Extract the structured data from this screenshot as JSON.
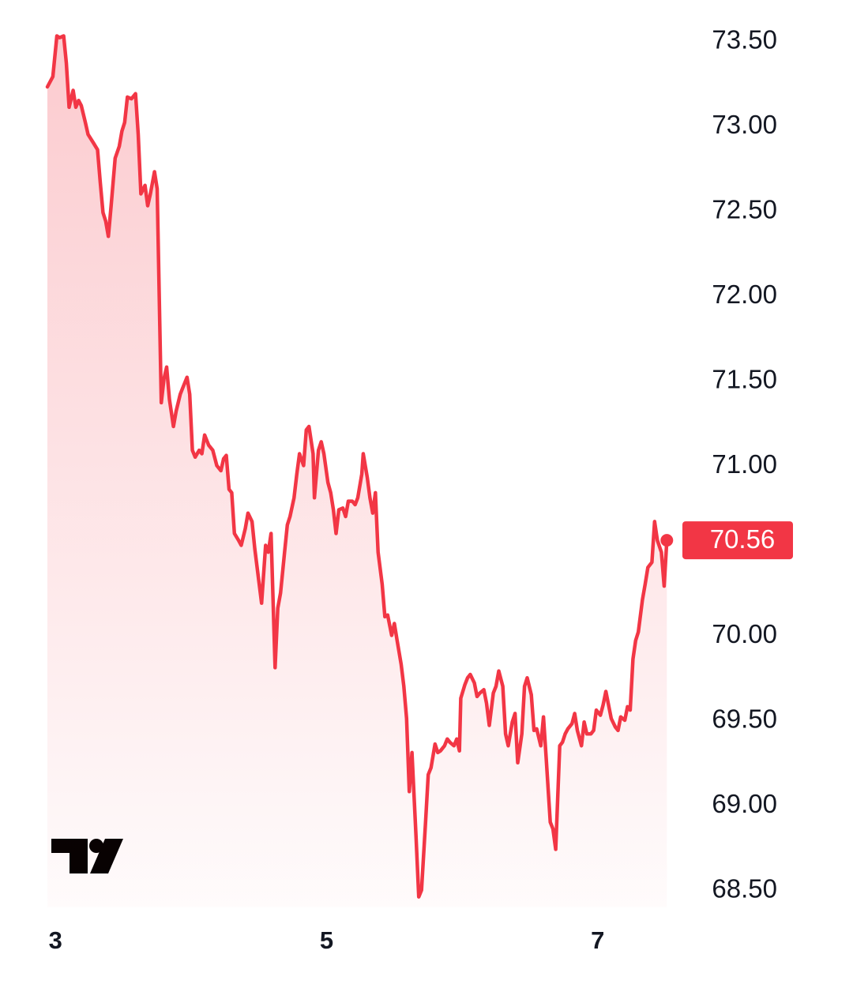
{
  "chart_data": {
    "type": "line",
    "color": "#f23645",
    "xlim": [
      2.94,
      7.52
    ],
    "xticks": [
      3,
      5,
      7
    ],
    "ylim": [
      68.4,
      73.6
    ],
    "yticks": [
      {
        "value": 73.5,
        "label": "73.50"
      },
      {
        "value": 73.0,
        "label": "73.00"
      },
      {
        "value": 72.5,
        "label": "72.50"
      },
      {
        "value": 72.0,
        "label": "72.00"
      },
      {
        "value": 71.5,
        "label": "71.50"
      },
      {
        "value": 71.0,
        "label": "71.00"
      },
      {
        "value": 70.0,
        "label": "70.00"
      },
      {
        "value": 69.5,
        "label": "69.50"
      },
      {
        "value": 69.0,
        "label": "69.00"
      },
      {
        "value": 68.5,
        "label": "68.50"
      }
    ],
    "last_price": {
      "value": 70.56,
      "label": "70.56"
    },
    "x": [
      2.94,
      2.98,
      3.01,
      3.03,
      3.06,
      3.08,
      3.1,
      3.13,
      3.15,
      3.17,
      3.19,
      3.22,
      3.24,
      3.28,
      3.31,
      3.33,
      3.35,
      3.37,
      3.39,
      3.41,
      3.44,
      3.47,
      3.49,
      3.51,
      3.53,
      3.56,
      3.59,
      3.61,
      3.63,
      3.66,
      3.68,
      3.7,
      3.73,
      3.75,
      3.78,
      3.8,
      3.82,
      3.84,
      3.87,
      3.89,
      3.92,
      3.94,
      3.97,
      3.99,
      4.01,
      4.03,
      4.06,
      4.08,
      4.1,
      4.13,
      4.16,
      4.19,
      4.22,
      4.24,
      4.26,
      4.28,
      4.3,
      4.32,
      4.35,
      4.37,
      4.4,
      4.42,
      4.45,
      4.47,
      4.5,
      4.52,
      4.55,
      4.57,
      4.59,
      4.62,
      4.64,
      4.66,
      4.69,
      4.71,
      4.73,
      4.76,
      4.78,
      4.8,
      4.83,
      4.85,
      4.87,
      4.9,
      4.91,
      4.94,
      4.96,
      4.98,
      5.01,
      5.03,
      5.05,
      5.07,
      5.09,
      5.12,
      5.14,
      5.16,
      5.19,
      5.21,
      5.23,
      5.26,
      5.27,
      5.3,
      5.32,
      5.34,
      5.36,
      5.38,
      5.41,
      5.43,
      5.45,
      5.48,
      5.5,
      5.52,
      5.55,
      5.57,
      5.59,
      5.61,
      5.63,
      5.66,
      5.68,
      5.7,
      5.73,
      5.75,
      5.77,
      5.8,
      5.82,
      5.84,
      5.87,
      5.89,
      5.91,
      5.94,
      5.96,
      5.98,
      5.99,
      6.02,
      6.04,
      6.06,
      6.09,
      6.11,
      6.13,
      6.16,
      6.18,
      6.2,
      6.23,
      6.25,
      6.27,
      6.3,
      6.32,
      6.34,
      6.37,
      6.39,
      6.41,
      6.44,
      6.46,
      6.48,
      6.51,
      6.53,
      6.55,
      6.58,
      6.6,
      6.62,
      6.65,
      6.67,
      6.69,
      6.72,
      6.74,
      6.76,
      6.78,
      6.81,
      6.83,
      6.85,
      6.88,
      6.9,
      6.92,
      6.95,
      6.97,
      6.99,
      7.02,
      7.04,
      7.06,
      7.08,
      7.1,
      7.13,
      7.15,
      7.17,
      7.2,
      7.22,
      7.24,
      7.26,
      7.28,
      7.3,
      7.33,
      7.35,
      7.37,
      7.4,
      7.42,
      7.44,
      7.47,
      7.49,
      7.51
    ],
    "values": [
      73.23,
      73.29,
      73.53,
      73.52,
      73.53,
      73.37,
      73.11,
      73.21,
      73.11,
      73.15,
      73.12,
      73.02,
      72.95,
      72.9,
      72.86,
      72.67,
      72.49,
      72.44,
      72.35,
      72.53,
      72.81,
      72.88,
      72.97,
      73.02,
      73.17,
      73.16,
      73.19,
      72.95,
      72.6,
      72.65,
      72.53,
      72.6,
      72.73,
      72.63,
      71.37,
      71.51,
      71.58,
      71.39,
      71.23,
      71.32,
      71.42,
      71.46,
      71.52,
      71.42,
      71.09,
      71.05,
      71.09,
      71.07,
      71.18,
      71.12,
      71.09,
      71.0,
      70.97,
      71.04,
      71.06,
      70.86,
      70.84,
      70.6,
      70.56,
      70.53,
      70.63,
      70.72,
      70.67,
      70.51,
      70.32,
      70.19,
      70.53,
      70.49,
      70.6,
      69.81,
      70.16,
      70.25,
      70.49,
      70.65,
      70.7,
      70.81,
      70.95,
      71.07,
      71.0,
      71.21,
      71.23,
      71.07,
      70.81,
      71.09,
      71.14,
      71.07,
      70.9,
      70.84,
      70.74,
      70.6,
      70.74,
      70.75,
      70.7,
      70.79,
      70.79,
      70.77,
      70.81,
      70.95,
      71.07,
      70.93,
      70.81,
      70.72,
      70.84,
      70.49,
      70.3,
      70.11,
      70.12,
      70.0,
      70.07,
      69.97,
      69.83,
      69.7,
      69.51,
      69.08,
      69.31,
      68.81,
      68.46,
      68.5,
      68.9,
      69.18,
      69.22,
      69.36,
      69.31,
      69.32,
      69.35,
      69.39,
      69.37,
      69.35,
      69.39,
      69.32,
      69.63,
      69.71,
      69.75,
      69.77,
      69.72,
      69.64,
      69.66,
      69.68,
      69.6,
      69.47,
      69.66,
      69.7,
      69.79,
      69.7,
      69.42,
      69.35,
      69.49,
      69.54,
      69.25,
      69.42,
      69.7,
      69.75,
      69.65,
      69.44,
      69.45,
      69.35,
      69.52,
      69.28,
      68.9,
      68.86,
      68.74,
      69.35,
      69.37,
      69.42,
      69.45,
      69.48,
      69.54,
      69.44,
      69.35,
      69.49,
      69.42,
      69.42,
      69.44,
      69.56,
      69.53,
      69.59,
      69.67,
      69.59,
      69.51,
      69.46,
      69.44,
      69.52,
      69.5,
      69.58,
      69.56,
      69.86,
      69.97,
      70.02,
      70.21,
      70.3,
      70.4,
      70.43,
      70.67,
      70.56,
      70.49,
      70.29,
      70.56
    ]
  }
}
